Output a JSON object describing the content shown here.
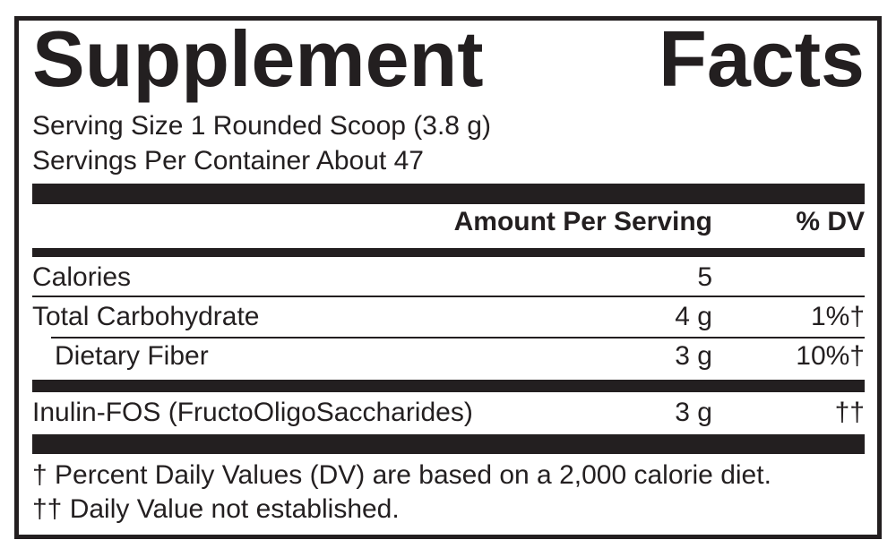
{
  "title": {
    "word1": "Supplement",
    "word2": "Facts"
  },
  "serving_size": "Serving Size 1 Rounded Scoop (3.8 g)",
  "servings_per_container": "Servings Per Container About 47",
  "header": {
    "amount": "Amount Per Serving",
    "dv": "% DV"
  },
  "rows": [
    {
      "name": "Calories",
      "amount": "5",
      "dv": ""
    },
    {
      "name": "Total Carbohydrate",
      "amount": "4 g",
      "dv": "1%†"
    },
    {
      "name": "Dietary Fiber",
      "amount": "3 g",
      "dv": "10%†"
    },
    {
      "name": "Inulin-FOS (FructoOligoSaccharides)",
      "amount": "3 g",
      "dv": "††"
    }
  ],
  "footnotes": [
    "† Percent Daily Values (DV) are based on a 2,000 calorie diet.",
    "†† Daily Value not established."
  ],
  "colors": {
    "ink": "#231f20",
    "background": "#ffffff"
  }
}
